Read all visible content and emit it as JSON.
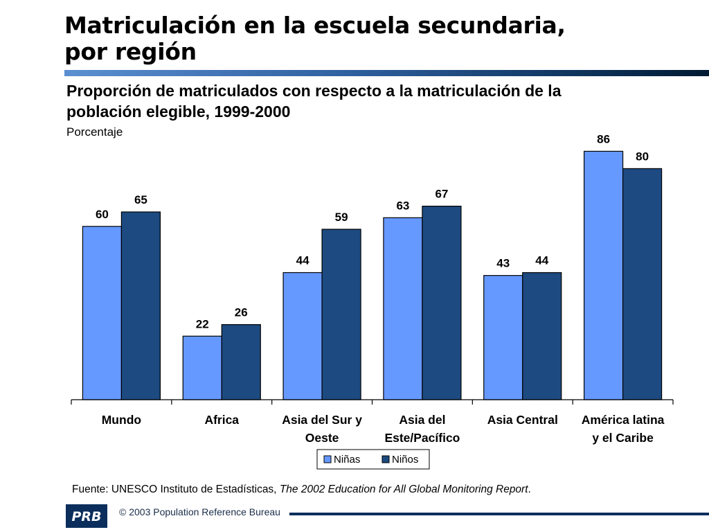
{
  "header": {
    "title_line1": "Matriculación en la escuela secundaria,",
    "title_line2": "por región"
  },
  "chart_data": {
    "type": "bar",
    "title": "Proporción de matriculados con respecto a la matriculación de la población elegible, 1999-2000",
    "subtitle_line1": "Proporción de matriculados con respecto a la matriculación de la",
    "subtitle_line2": "población elegible, 1999-2000",
    "ylabel": "Porcentaje",
    "ylim": [
      0,
      100
    ],
    "grid": false,
    "legend_position": "bottom-center",
    "categories": [
      [
        "Mundo"
      ],
      [
        "Africa"
      ],
      [
        "Asia del Sur y",
        "Oeste"
      ],
      [
        "Asia del",
        "Este/Pacífico"
      ],
      [
        "Asia Central"
      ],
      [
        "América latina",
        "y el Caribe"
      ]
    ],
    "series": [
      {
        "name": "Niñas",
        "color": "#6699ff",
        "values": [
          60,
          22,
          44,
          63,
          43,
          86
        ]
      },
      {
        "name": "Niños",
        "color": "#1d4a80",
        "values": [
          65,
          26,
          59,
          67,
          44,
          80
        ]
      }
    ]
  },
  "footer": {
    "source_prefix": "Fuente: UNESCO Instituto de Estadísticas, ",
    "source_title": "The 2002 Education for All Global Monitoring Report",
    "source_suffix": ".",
    "logo_text": "PRB",
    "copyright": "© 2003 Population Reference Bureau"
  }
}
